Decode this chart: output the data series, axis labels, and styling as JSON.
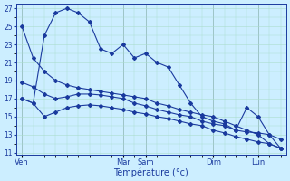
{
  "xlabel": "Température (°c)",
  "bg_color": "#cceeff",
  "grid_color": "#aaddee",
  "line_color": "#1a3a9e",
  "ylim": [
    11,
    27
  ],
  "yticks": [
    11,
    13,
    15,
    17,
    19,
    21,
    23,
    25,
    27
  ],
  "day_labels": [
    "Ven",
    "Mar",
    "Sam",
    "Dim",
    "Lun"
  ],
  "day_x": [
    0,
    9,
    11,
    17,
    21
  ],
  "total_points": 24,
  "s1_x": [
    0,
    1,
    2,
    3,
    4,
    5,
    6,
    7,
    8,
    9,
    10,
    11,
    12,
    13,
    14,
    15,
    16,
    17,
    18,
    19,
    20,
    21,
    22,
    23
  ],
  "s1_y": [
    25.0,
    21.5,
    20.0,
    19.0,
    18.5,
    18.2,
    18.0,
    17.8,
    17.6,
    17.4,
    17.2,
    17.0,
    16.5,
    16.2,
    15.8,
    15.5,
    15.2,
    15.0,
    14.5,
    14.0,
    13.5,
    13.0,
    12.0,
    11.5
  ],
  "s2_x": [
    0,
    1,
    2,
    3,
    4,
    5,
    6,
    7,
    8,
    9,
    10,
    11,
    12,
    13,
    14,
    15,
    16,
    17,
    18,
    19,
    20,
    21,
    22,
    23
  ],
  "s2_y": [
    18.8,
    18.3,
    17.5,
    17.0,
    17.2,
    17.5,
    17.5,
    17.4,
    17.2,
    17.0,
    16.5,
    16.2,
    15.8,
    15.5,
    15.2,
    15.0,
    14.5,
    14.2,
    14.0,
    13.5,
    13.3,
    13.2,
    13.0,
    12.5
  ],
  "s3_x": [
    0,
    1,
    2,
    3,
    4,
    5,
    6,
    7,
    8,
    9,
    10,
    11,
    12,
    13,
    14,
    15,
    16,
    17,
    18,
    19,
    20,
    21,
    22,
    23
  ],
  "s3_y": [
    17.0,
    16.5,
    15.0,
    15.5,
    16.0,
    16.2,
    16.3,
    16.2,
    16.0,
    15.8,
    15.5,
    15.3,
    15.0,
    14.8,
    14.5,
    14.2,
    14.0,
    13.5,
    13.2,
    12.8,
    12.5,
    12.2,
    12.0,
    11.5
  ],
  "s4_x": [
    0,
    1,
    2,
    3,
    4,
    5,
    6,
    7,
    8,
    9,
    10,
    11,
    12,
    13,
    14,
    15,
    16,
    17,
    18,
    19,
    20,
    21,
    22,
    23
  ],
  "s4_y": [
    17.0,
    16.5,
    24.0,
    26.5,
    27.0,
    26.5,
    25.5,
    22.5,
    22.0,
    23.0,
    21.5,
    22.0,
    21.0,
    20.5,
    18.5,
    16.5,
    15.0,
    14.5,
    14.2,
    13.5,
    16.0,
    15.0,
    13.0,
    11.5
  ]
}
